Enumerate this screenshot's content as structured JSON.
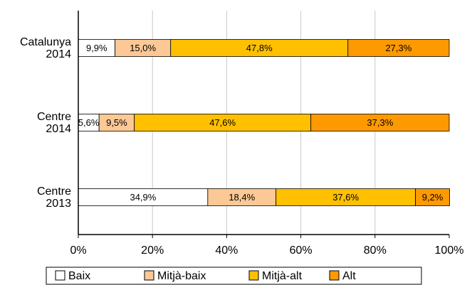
{
  "chart_data": {
    "type": "stacked-bar-horizontal",
    "categories": [
      "Catalunya\n2014",
      "Centre\n2014",
      "Centre\n2013"
    ],
    "series": [
      {
        "name": "Baix",
        "color": "#ffffff",
        "values": [
          9.9,
          5.6,
          34.9
        ],
        "value_labels": [
          "9,9%",
          "5,6%",
          "34,9%"
        ]
      },
      {
        "name": "Mitjà-baix",
        "color": "#fbc896",
        "values": [
          15.0,
          9.5,
          18.4
        ],
        "value_labels": [
          "15,0%",
          "9,5%",
          "18,4%"
        ]
      },
      {
        "name": "Mitjà-alt",
        "color": "#ffc000",
        "values": [
          47.8,
          47.6,
          37.6
        ],
        "value_labels": [
          "47,8%",
          "47,6%",
          "37,6%"
        ]
      },
      {
        "name": "Alt",
        "color": "#ff9900",
        "values": [
          27.3,
          37.3,
          9.2
        ],
        "value_labels": [
          "27,3%",
          "37,3%",
          "9,2%"
        ]
      }
    ],
    "xlim": [
      0,
      100
    ],
    "xticks": [
      {
        "value": 0,
        "label": "0%"
      },
      {
        "value": 20,
        "label": "20%"
      },
      {
        "value": 40,
        "label": "40%"
      },
      {
        "value": 60,
        "label": "60%"
      },
      {
        "value": 80,
        "label": "80%"
      },
      {
        "value": 100,
        "label": "100%"
      }
    ],
    "grid": true,
    "legend": "bottom"
  }
}
